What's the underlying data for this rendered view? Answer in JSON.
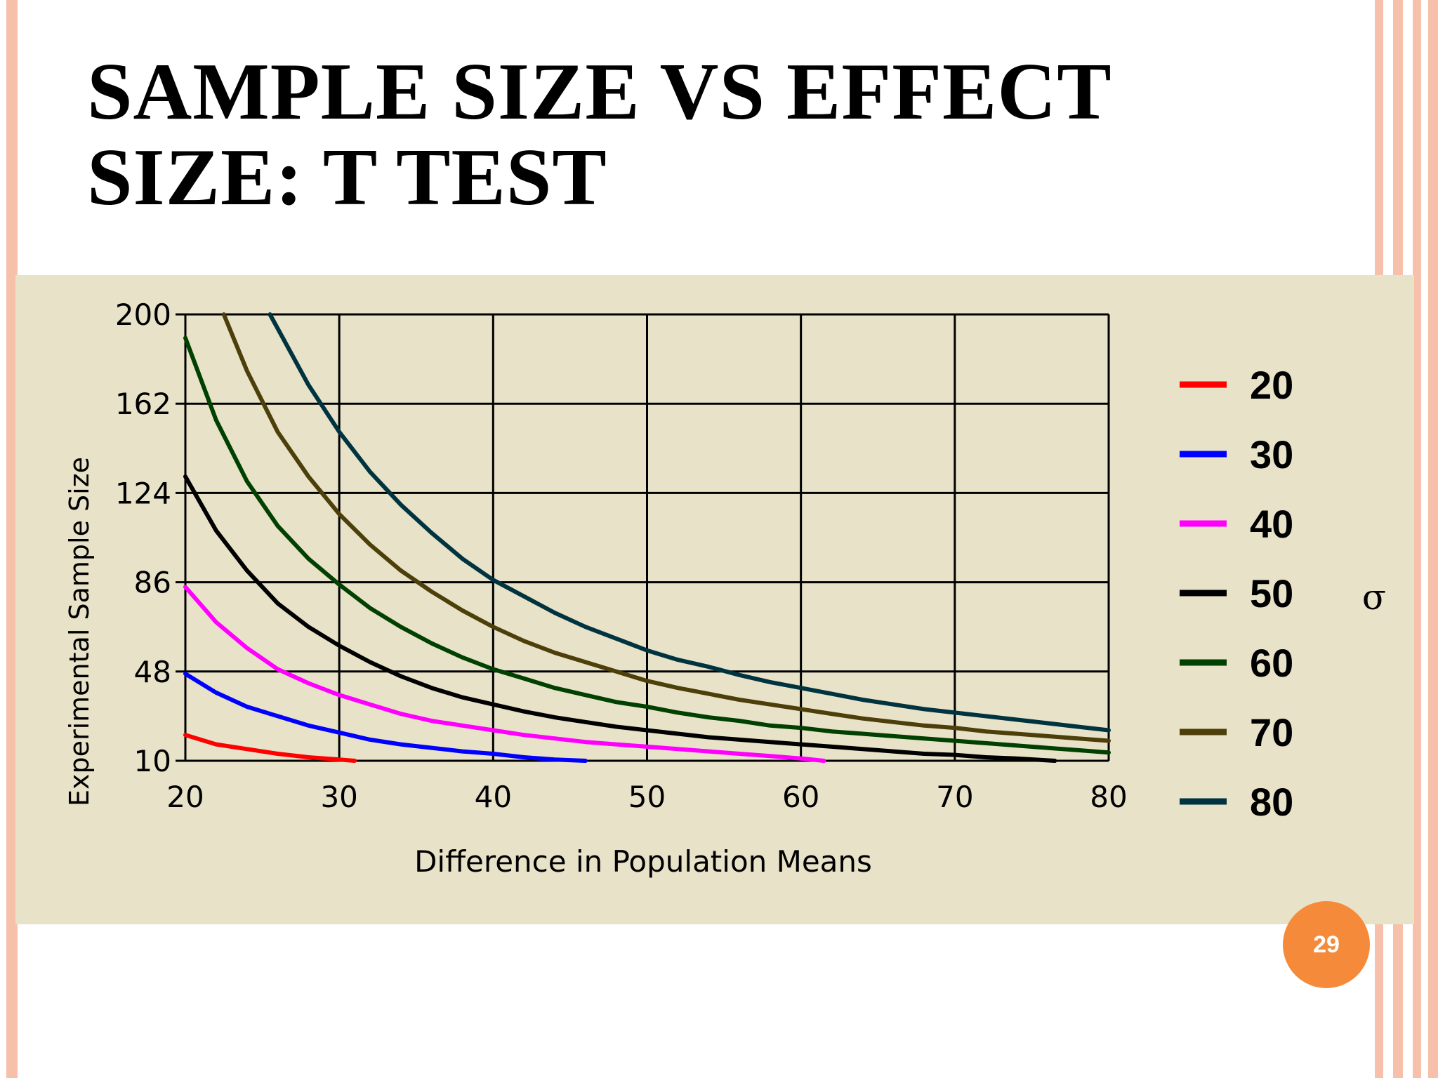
{
  "slide": {
    "title_line1": "SAMPLE SIZE VS EFFECT",
    "title_line2": "SIZE: T TEST",
    "page_number": "29"
  },
  "colors": {
    "frame": "#f7c0aa",
    "chart_bg": "#e8e2c8",
    "page_badge": "#f58b3a"
  },
  "chart_data": {
    "type": "line",
    "xlabel": "Difference in Population Means",
    "ylabel": "Experimental Sample Size",
    "legend_title": "σ",
    "legend_position": "right",
    "xlim": [
      20,
      80
    ],
    "ylim": [
      10,
      200
    ],
    "xticks": [
      20,
      30,
      40,
      50,
      60,
      70,
      80
    ],
    "yticks": [
      10,
      48,
      86,
      124,
      162,
      200
    ],
    "grid": true,
    "series": [
      {
        "name": "20",
        "color": "#ff0000",
        "x": [
          20,
          22,
          24,
          26,
          28,
          30,
          31
        ],
        "y": [
          21,
          17,
          15,
          13,
          11.5,
          10.5,
          10
        ]
      },
      {
        "name": "30",
        "color": "#0000ff",
        "x": [
          20,
          22,
          24,
          26,
          28,
          30,
          32,
          34,
          36,
          38,
          40,
          42,
          44,
          46
        ],
        "y": [
          47,
          39,
          33,
          29,
          25,
          22,
          19,
          17,
          15.5,
          14,
          13,
          11.5,
          10.5,
          10
        ]
      },
      {
        "name": "40",
        "color": "#ff00ff",
        "x": [
          20,
          22,
          24,
          26,
          28,
          30,
          32,
          34,
          36,
          38,
          40,
          42,
          44,
          46,
          48,
          50,
          52,
          54,
          56,
          58,
          60,
          61.5
        ],
        "y": [
          84,
          69,
          58,
          49,
          43,
          38,
          34,
          30,
          27,
          25,
          23,
          21,
          19.5,
          18,
          17,
          16,
          15,
          14,
          13,
          12,
          11,
          10
        ]
      },
      {
        "name": "50",
        "color": "#000000",
        "x": [
          20,
          22,
          24,
          26,
          28,
          30,
          32,
          34,
          36,
          38,
          40,
          42,
          44,
          46,
          48,
          50,
          52,
          54,
          56,
          58,
          60,
          62,
          64,
          66,
          68,
          70,
          72,
          74,
          76.5
        ],
        "y": [
          131,
          108,
          91,
          77,
          67,
          59,
          52,
          46,
          41,
          37,
          34,
          31,
          28.5,
          26.5,
          24.5,
          23,
          21.5,
          20,
          19,
          18,
          17,
          16,
          15,
          14,
          13,
          12.5,
          11.5,
          11,
          10
        ]
      },
      {
        "name": "60",
        "color": "#004000",
        "x": [
          20,
          22,
          24,
          26,
          28,
          30,
          32,
          34,
          36,
          38,
          40,
          42,
          44,
          46,
          48,
          50,
          52,
          54,
          56,
          58,
          60,
          62,
          64,
          66,
          68,
          70,
          72,
          74,
          76,
          78,
          80
        ],
        "y": [
          190,
          155,
          129,
          110,
          96,
          85,
          75,
          67,
          60,
          54,
          49,
          45,
          41,
          38,
          35,
          33,
          30.5,
          28.5,
          27,
          25,
          24,
          22.5,
          21.5,
          20.5,
          19.5,
          18.5,
          17.5,
          16.5,
          15.5,
          14.5,
          13.5
        ]
      },
      {
        "name": "70",
        "color": "#4d3f0a",
        "x": [
          22.5,
          24,
          26,
          28,
          30,
          32,
          34,
          36,
          38,
          40,
          42,
          44,
          46,
          48,
          50,
          52,
          54,
          56,
          58,
          60,
          62,
          64,
          66,
          68,
          70,
          72,
          74,
          76,
          78,
          80
        ],
        "y": [
          200,
          176,
          150,
          131,
          115,
          102,
          91,
          82,
          74,
          67,
          61,
          56,
          52,
          48,
          44,
          41,
          38.5,
          36,
          34,
          32,
          30,
          28,
          26.5,
          25,
          24,
          22.5,
          21.5,
          20.5,
          19.5,
          18.5
        ]
      },
      {
        "name": "80",
        "color": "#003340",
        "x": [
          25.5,
          26,
          28,
          30,
          32,
          34,
          36,
          38,
          40,
          42,
          44,
          46,
          48,
          50,
          52,
          54,
          56,
          58,
          60,
          62,
          64,
          66,
          68,
          70,
          72,
          74,
          76,
          78,
          80
        ],
        "y": [
          200,
          194,
          170,
          150,
          133,
          119,
          107,
          96,
          87,
          80,
          73,
          67,
          62,
          57,
          53,
          50,
          46.5,
          43.5,
          41,
          38.5,
          36,
          34,
          32,
          30.5,
          29,
          27.5,
          26,
          24.5,
          23
        ]
      }
    ]
  }
}
